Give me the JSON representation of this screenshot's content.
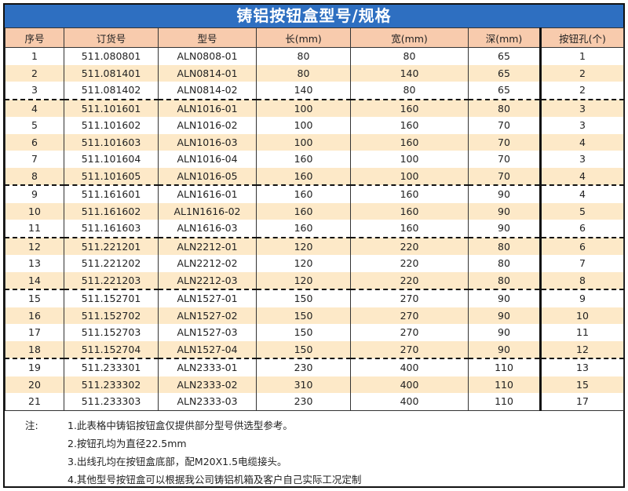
{
  "title": "铸铝按钮盒型号/规格",
  "columns": [
    "序号",
    "订货号",
    "型号",
    "长(mm)",
    "宽(mm)",
    "深(mm)",
    "按钮孔(个)"
  ],
  "rows": [
    [
      "1",
      "511.080801",
      "ALN0808-01",
      "80",
      "80",
      "65",
      "1"
    ],
    [
      "2",
      "511.081401",
      "ALN0814-01",
      "80",
      "140",
      "65",
      "2"
    ],
    [
      "3",
      "511.081402",
      "ALN0814-02",
      "140",
      "80",
      "65",
      "2"
    ],
    [
      "4",
      "511.101601",
      "ALN1016-01",
      "100",
      "160",
      "80",
      "3"
    ],
    [
      "5",
      "511.101602",
      "ALN1016-02",
      "100",
      "160",
      "70",
      "3"
    ],
    [
      "6",
      "511.101603",
      "ALN1016-03",
      "100",
      "160",
      "70",
      "4"
    ],
    [
      "7",
      "511.101604",
      "ALN1016-04",
      "160",
      "100",
      "70",
      "3"
    ],
    [
      "8",
      "511.101605",
      "ALN1016-05",
      "160",
      "100",
      "70",
      "4"
    ],
    [
      "9",
      "511.161601",
      "ALN1616-01",
      "160",
      "160",
      "90",
      "4"
    ],
    [
      "10",
      "511.161602",
      "AL1N1616-02",
      "160",
      "160",
      "90",
      "5"
    ],
    [
      "11",
      "511.161603",
      "ALN1616-03",
      "160",
      "160",
      "90",
      "6"
    ],
    [
      "12",
      "511.221201",
      "ALN2212-01",
      "120",
      "220",
      "80",
      "6"
    ],
    [
      "13",
      "511.221202",
      "ALN2212-02",
      "120",
      "220",
      "80",
      "7"
    ],
    [
      "14",
      "511.221203",
      "ALN2212-03",
      "120",
      "220",
      "80",
      "8"
    ],
    [
      "15",
      "511.152701",
      "ALN1527-01",
      "150",
      "270",
      "90",
      "9"
    ],
    [
      "16",
      "511.152702",
      "ALN1527-02",
      "150",
      "270",
      "90",
      "10"
    ],
    [
      "17",
      "511.152703",
      "ALN1527-03",
      "150",
      "270",
      "90",
      "11"
    ],
    [
      "18",
      "511.152704",
      "ALN1527-04",
      "150",
      "270",
      "90",
      "12"
    ],
    [
      "19",
      "511.233301",
      "ALN2333-01",
      "230",
      "400",
      "110",
      "13"
    ],
    [
      "20",
      "511.233302",
      "ALN2333-02",
      "310",
      "400",
      "110",
      "15"
    ],
    [
      "21",
      "511.233303",
      "ALN2333-03",
      "230",
      "400",
      "110",
      "17"
    ]
  ],
  "group_starts": [
    4,
    9,
    12,
    15,
    19
  ],
  "notes": {
    "label": "注:",
    "lines": [
      "1.此表格中铸铝按钮盒仅提供部分型号供选型参考。",
      "2.按钮孔均为直径22.5mm",
      "3.出线孔均在按钮盒底部，配M20X1.5电缆接头。",
      "4.其他型号按钮盒可以根据我公司铸铝机箱及客户自己实际工况定制"
    ]
  },
  "colors": {
    "title_bg": "#2e6fc1",
    "header_bg": "#f8cbad",
    "alt_row_bg": "#fde9c8"
  }
}
